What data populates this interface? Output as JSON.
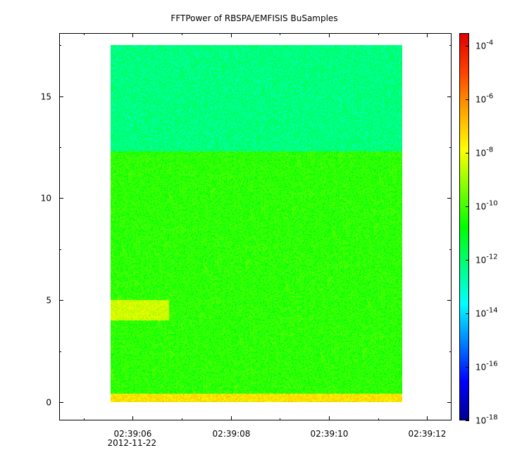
{
  "chart_data": {
    "type": "heatmap",
    "title": "FFTPower of RBSPA/EMFISIS  BuSamples",
    "xlabel": "",
    "ylabel": "",
    "x_date_label": "2012-11-22",
    "x_ticks": [
      "02:39:06",
      "02:39:08",
      "02:39:10",
      "02:39:12"
    ],
    "y_ticks": [
      "0",
      "5",
      "10",
      "15"
    ],
    "x_range_seconds": [
      4.5,
      12.5
    ],
    "y_range": [
      -0.9,
      18.1
    ],
    "data_extent": {
      "x_seconds": [
        5.55,
        11.5
      ],
      "y": [
        0,
        17.5
      ]
    },
    "colorbar": {
      "scale": "log",
      "range": [
        1e-18,
        0.0003
      ],
      "tick_labels": [
        {
          "base": "10",
          "exp": "-4"
        },
        {
          "base": "10",
          "exp": "-6"
        },
        {
          "base": "10",
          "exp": "-8"
        },
        {
          "base": "10",
          "exp": "-10"
        },
        {
          "base": "10",
          "exp": "-12"
        },
        {
          "base": "10",
          "exp": "-14"
        },
        {
          "base": "10",
          "exp": "-16"
        },
        {
          "base": "10",
          "exp": "-18"
        }
      ],
      "tick_exponents": [
        -4,
        -6,
        -8,
        -10,
        -12,
        -14,
        -16,
        -18
      ],
      "colors": [
        "#00008f",
        "#0000ff",
        "#007fff",
        "#00ffff",
        "#00ff7f",
        "#00ff00",
        "#7fff00",
        "#ffff00",
        "#ffa500",
        "#ff4000",
        "#e00000"
      ]
    },
    "regions": [
      {
        "name": "upper band",
        "y": [
          12.3,
          17.5
        ],
        "level_exp": -12.2
      },
      {
        "name": "middle band",
        "y": [
          0.4,
          12.3
        ],
        "level_exp": -10.3
      },
      {
        "name": "bottom line",
        "y": [
          0.0,
          0.4
        ],
        "level_exp": -7.5
      },
      {
        "name": "burst",
        "x_seconds": [
          5.55,
          6.75
        ],
        "y": [
          4.0,
          5.0
        ],
        "level_exp": -8.3
      }
    ]
  }
}
